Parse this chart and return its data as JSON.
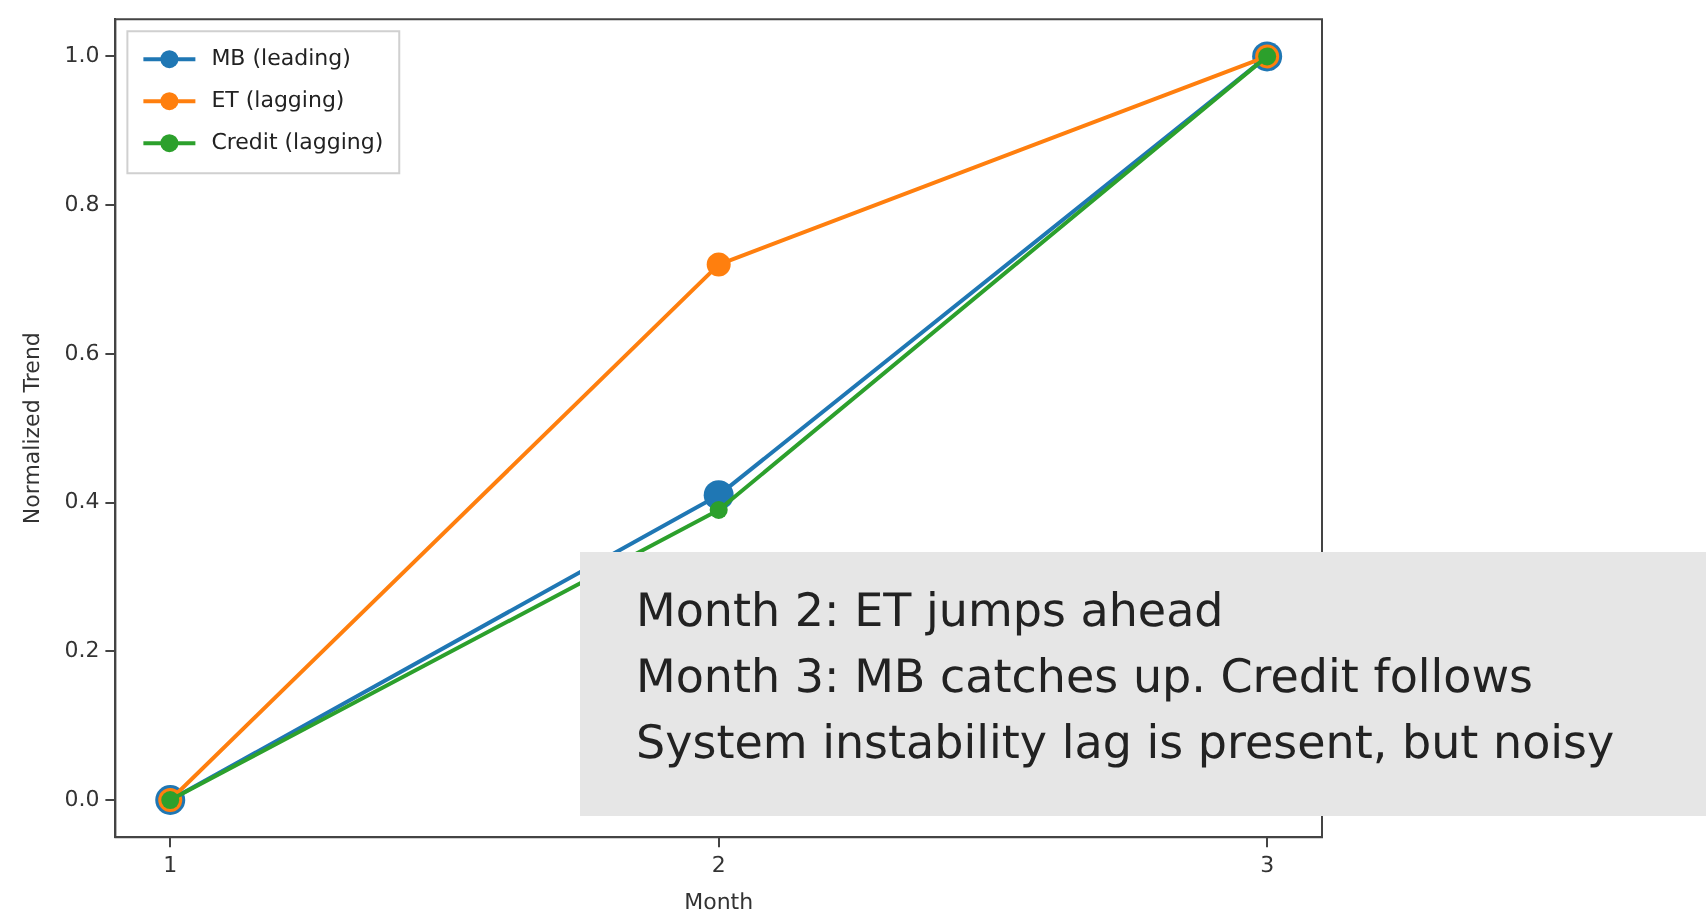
{
  "chart_data": {
    "type": "line",
    "xlabel": "Month",
    "ylabel": "Normalized Trend",
    "x": [
      1,
      2,
      3
    ],
    "series": [
      {
        "name": "MB (leading)",
        "color": "#1f77b4",
        "values": [
          0,
          0.41,
          1
        ]
      },
      {
        "name": "ET (lagging)",
        "color": "#ff7f0e",
        "values": [
          0,
          0.72,
          1
        ]
      },
      {
        "name": "Credit (lagging)",
        "color": "#2ca02c",
        "values": [
          0,
          0.39,
          1
        ]
      }
    ],
    "xlim": [
      0.9,
      3.1
    ],
    "xticks": [
      1,
      2,
      3
    ],
    "ylim": [
      -0.05,
      1.05
    ],
    "yticks": [
      {
        "value": 0,
        "label": "0.0"
      },
      {
        "value": 0.2,
        "label": "0.2"
      },
      {
        "value": 0.4,
        "label": "0.4"
      },
      {
        "value": 0.6,
        "label": "0.6"
      },
      {
        "value": 0.8,
        "label": "0.8"
      },
      {
        "value": 1,
        "label": "1.0"
      }
    ],
    "grid": false,
    "legend": "top left",
    "marker": "circle",
    "line_style": "solid",
    "annotations": [
      "Month 2: ET jumps ahead",
      "Month 3: MB catches up. Credit follows",
      "System instability lag is present, but noisy"
    ]
  }
}
